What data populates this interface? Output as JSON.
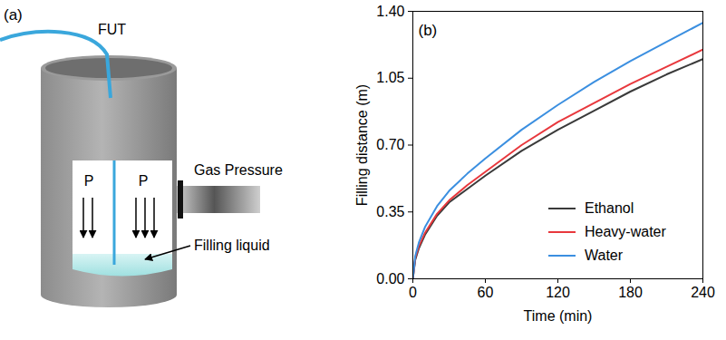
{
  "diagram": {
    "label": "(a)",
    "tube_label": "FUT",
    "pressure_labels": [
      "P",
      "P"
    ],
    "gas_label": "Gas Pressure",
    "liquid_label": "Filling liquid"
  },
  "chart_data": {
    "type": "line",
    "title": "(b)",
    "x_label": "Time (min)",
    "y_label": "Filling distance (m)",
    "x": [
      0,
      2,
      5,
      10,
      20,
      30,
      45,
      60,
      90,
      120,
      150,
      180,
      210,
      240
    ],
    "series": [
      {
        "name": "Ethanol",
        "color": "#3a3a3a",
        "values": [
          0,
          0.1,
          0.16,
          0.23,
          0.33,
          0.4,
          0.47,
          0.54,
          0.67,
          0.78,
          0.88,
          0.98,
          1.07,
          1.15
        ]
      },
      {
        "name": "Heavy-water",
        "color": "#e8383d",
        "values": [
          0,
          0.11,
          0.17,
          0.24,
          0.34,
          0.41,
          0.49,
          0.56,
          0.7,
          0.82,
          0.92,
          1.02,
          1.11,
          1.2
        ]
      },
      {
        "name": "Water",
        "color": "#3b8fe0",
        "values": [
          0,
          0.12,
          0.19,
          0.27,
          0.38,
          0.46,
          0.55,
          0.63,
          0.78,
          0.91,
          1.03,
          1.14,
          1.24,
          1.34
        ]
      }
    ],
    "xlim": [
      0,
      240
    ],
    "xticks": [
      0,
      60,
      120,
      180,
      240
    ],
    "ylim": [
      0,
      1.4
    ],
    "yticks": [
      {
        "value": 0,
        "label": "0.00"
      },
      {
        "value": 0.35,
        "label": "0.35"
      },
      {
        "value": 0.7,
        "label": "0.70"
      },
      {
        "value": 1.05,
        "label": "1.05"
      },
      {
        "value": 1.4,
        "label": "1.40"
      }
    ],
    "legend": "lower right",
    "grid": false
  }
}
